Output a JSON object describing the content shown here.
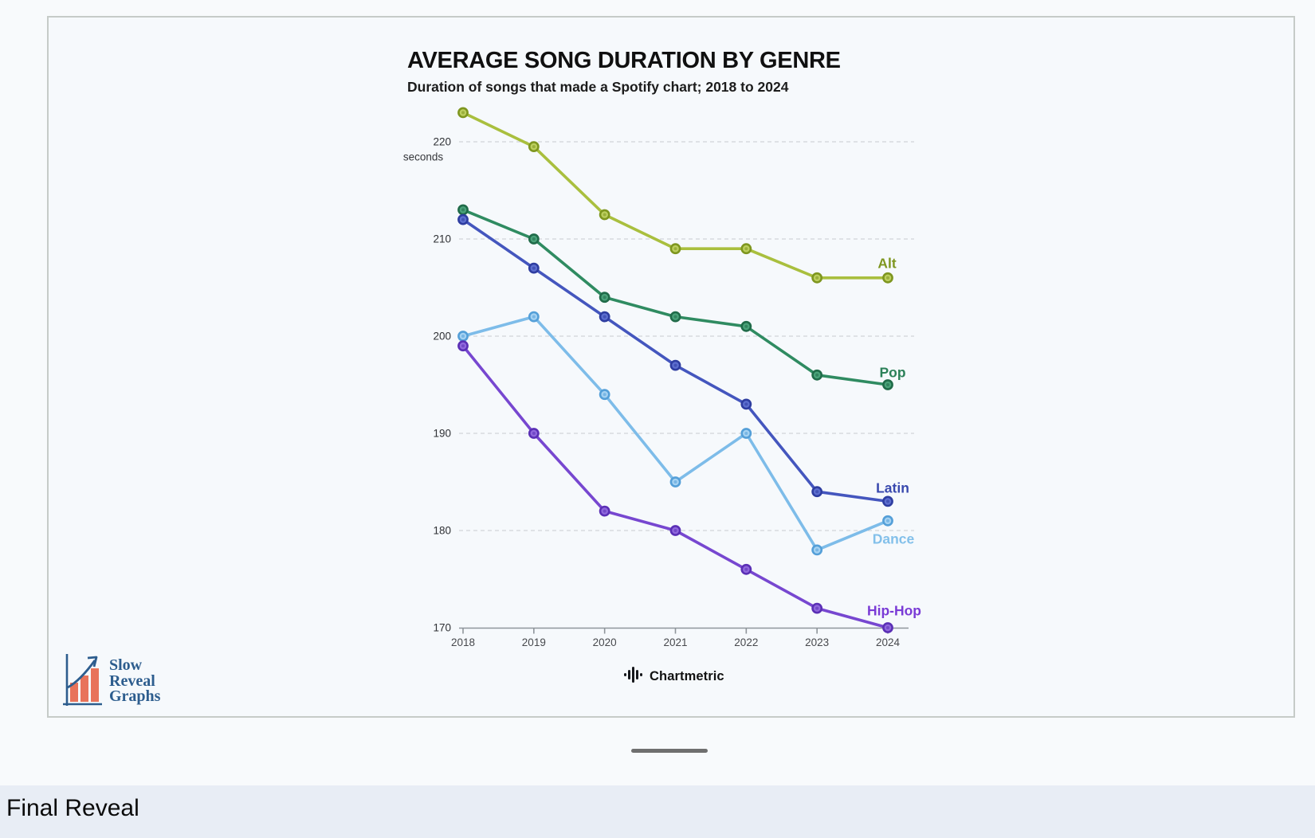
{
  "chart_data": {
    "type": "line",
    "title": "AVERAGE SONG DURATION BY GENRE",
    "subtitle": "Duration of songs that made a Spotify chart; 2018 to 2024",
    "x": [
      2018,
      2019,
      2020,
      2021,
      2022,
      2023,
      2024
    ],
    "y_ticks": [
      220,
      210,
      200,
      190,
      180,
      170
    ],
    "y_unit_label": "seconds",
    "y_unit_attached_to": 220,
    "ylim": [
      170,
      224
    ],
    "grid": "horizontal-dashed",
    "legend_position": "end-of-line-labels",
    "xlabel": "",
    "ylabel": "seconds",
    "series": [
      {
        "name": "Alt",
        "values": [
          223,
          219.5,
          212.5,
          209,
          209,
          206,
          206
        ],
        "color": "#a9bf3e",
        "color_dark": "#7e961f",
        "color_light": "#bccf5e",
        "label_color": "#7e961f",
        "label_offset": [
          -1,
          -18
        ]
      },
      {
        "name": "Pop",
        "values": [
          213,
          210,
          204,
          202,
          201,
          196,
          195
        ],
        "color": "#2f8b61",
        "color_dark": "#206b49",
        "color_light": "#4aa37a",
        "label_color": "#2c8159",
        "label_offset": [
          6,
          -15
        ]
      },
      {
        "name": "Latin",
        "values": [
          212,
          207,
          202,
          197,
          193,
          184,
          183
        ],
        "color": "#4456be",
        "color_dark": "#2e3da0",
        "color_light": "#5d6fd0",
        "label_color": "#3949ae",
        "label_offset": [
          6,
          -16
        ]
      },
      {
        "name": "Dance",
        "values": [
          200,
          202,
          194,
          185,
          190,
          178,
          181
        ],
        "color": "#7dbce9",
        "color_dark": "#549fd8",
        "color_light": "#a5d2f2",
        "label_color": "#83c0ea",
        "label_offset": [
          7,
          23
        ]
      },
      {
        "name": "Hip-Hop",
        "values": [
          199,
          190,
          182,
          180,
          176,
          172,
          170
        ],
        "color": "#7747d0",
        "color_dark": "#5a2fb5",
        "color_light": "#9068dd",
        "label_color": "#7a3bd6",
        "label_offset": [
          8,
          -21
        ]
      }
    ]
  },
  "attribution": {
    "source_label": "Chartmetric",
    "icon": "soundwave-icon"
  },
  "logo": {
    "icon": "rising-bar-chart-icon",
    "line1": "Slow",
    "line2": "Reveal",
    "line3": "Graphs",
    "text_color": "#2d5d8e",
    "bar_color": "#e8735a"
  },
  "page": {
    "bottom_bar_label": "Final Reveal"
  }
}
